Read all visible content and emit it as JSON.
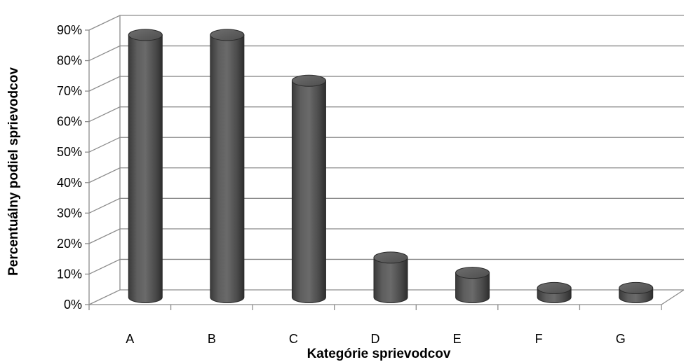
{
  "chart_data": {
    "type": "bar",
    "style": "3d-cylinder",
    "categories": [
      "A",
      "B",
      "C",
      "D",
      "E",
      "F",
      "G"
    ],
    "values": [
      0.86,
      0.86,
      0.71,
      0.13,
      0.08,
      0.03,
      0.03
    ],
    "ylim": [
      0,
      0.9
    ],
    "yticks": [
      "0%",
      "10%",
      "20%",
      "30%",
      "40%",
      "50%",
      "60%",
      "70%",
      "80%",
      "90%"
    ],
    "xlabel": "Kategórie sprievodcov",
    "ylabel": "Percentuálny podiel sprievodcov",
    "grid": true,
    "legend": "none",
    "bar_color": "#595959"
  }
}
